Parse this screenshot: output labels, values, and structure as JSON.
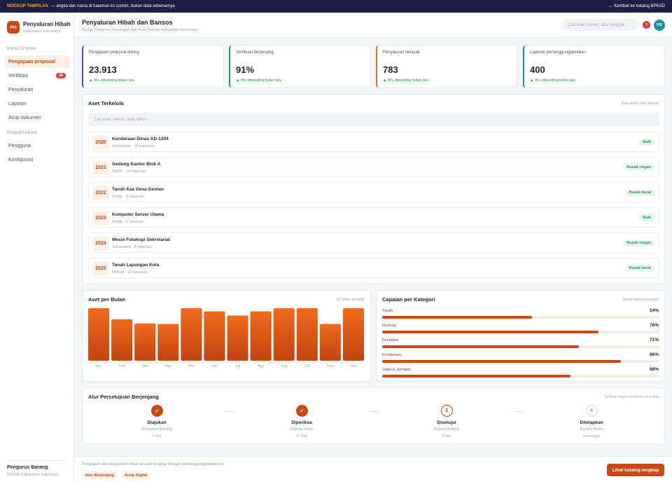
{
  "topbar": {
    "tag": "MOCKUP TAMPILAN",
    "notice": "— angka dan nama di halaman ini contoh, bukan data sebenarnya",
    "back_label": "← Kembali ke katalog BPKAD"
  },
  "brand": {
    "initials": "PH",
    "name": "Penyaluran Hibah",
    "sub": "Kabupaten Sukoharjo"
  },
  "sidebar": {
    "main_label": "MENU UTAMA",
    "items": [
      {
        "label": "Pengajuan proposal",
        "active": true
      },
      {
        "label": "Verifikasi",
        "badge": "39"
      },
      {
        "label": "Penyaluran"
      },
      {
        "label": "Laporan"
      },
      {
        "label": "Arsip dokumen"
      }
    ],
    "settings_label": "PENGATURAN",
    "settings_items": [
      {
        "label": "Pengguna"
      },
      {
        "label": "Konfigurasi"
      }
    ],
    "user": {
      "name": "Pengurus Barang",
      "org": "BPKAD Kabupaten Sukoharjo"
    }
  },
  "header": {
    "title": "Penyaluran Hibah dan Bansos",
    "subtitle": "Badan Pengelola Keuangan dan Aset Daerah Kabupaten Sukoharjo",
    "search_placeholder": "Cari aset, nomor, atau tanggal...",
    "notif_count": "7",
    "avatar": "PB"
  },
  "stats": [
    {
      "label": "Pengajuan proposal daring",
      "value": "23.913",
      "delta": "▲ 4% dibanding bulan lalu",
      "color": "#4a4fc9"
    },
    {
      "label": "Verifikasi berjenjang",
      "value": "91%",
      "delta": "▲ 8% dibanding bulan lalu",
      "color": "#1f9a5a"
    },
    {
      "label": "Penyaluran terlacak",
      "value": "783",
      "delta": "▲ 8% dibanding bulan lalu",
      "color": "#e07a1a"
    },
    {
      "label": "Laporan pertanggungjawaban",
      "value": "400",
      "delta": "▲ 4% dibanding bulan lalu",
      "color": "#1a8f9c"
    }
  ],
  "assets": {
    "title": "Aset Terkelola",
    "hint": "Pencarian teks penuh",
    "search_placeholder": "Cari aset, nomor, atau tahun...",
    "rows": [
      {
        "year": "2020",
        "name": "Kendaraan Dinas AD-1204",
        "meta": "Sekretariat · 16 halaman",
        "status": "Baik"
      },
      {
        "year": "2021",
        "name": "Gedung Kantor Blok A",
        "meta": "PUPR · 16 halaman",
        "status": "Rusak ringan"
      },
      {
        "year": "2022",
        "name": "Tanah Kas Desa Gentan",
        "meta": "Disdik · 3 halaman",
        "status": "Rusak berat"
      },
      {
        "year": "2023",
        "name": "Komputer Server Utama",
        "meta": "Disdik · 2 halaman",
        "status": "Baik"
      },
      {
        "year": "2024",
        "name": "Mesin Fotokopi Sekretariat",
        "meta": "Sekretariat · 8 halaman",
        "status": "Rusak ringan"
      },
      {
        "year": "2025",
        "name": "Tanah Lapangan Kota",
        "meta": "Dishub · 12 halaman",
        "status": "Rusak berat"
      }
    ]
  },
  "chart_data": {
    "type": "bar",
    "title": "Aset per Bulan",
    "hint": "12 bulan terakhir",
    "categories": [
      "Jan",
      "Feb",
      "Mar",
      "Apr",
      "Mei",
      "Jun",
      "Jul",
      "Ags",
      "Sep",
      "Okt",
      "Nov",
      "Des"
    ],
    "values": [
      100,
      79,
      71,
      70,
      100,
      94,
      86,
      94,
      100,
      100,
      70,
      100
    ],
    "ylim": [
      0,
      100
    ],
    "color": "#c84a12",
    "grid": false
  },
  "categories": {
    "title": "Capaian per Kategori",
    "hint": "Target tahun berjalan",
    "items": [
      {
        "label": "Tanah",
        "pct_label": "54%",
        "value": 54
      },
      {
        "label": "Gedung",
        "pct_label": "78%",
        "value": 78
      },
      {
        "label": "Peralatan",
        "pct_label": "71%",
        "value": 71
      },
      {
        "label": "Kendaraan",
        "pct_label": "86%",
        "value": 86
      },
      {
        "label": "Jalan & Jaringan",
        "pct_label": "68%",
        "value": 68
      }
    ]
  },
  "approval": {
    "title": "Alur Persetujuan Berjenjang",
    "hint": "Terlihat siapa menahan di mana",
    "steps": [
      {
        "mark": "✓",
        "name": "Diajukan",
        "role": "Pengurus Barang",
        "date": "1 Sep",
        "state": "done"
      },
      {
        "mark": "✓",
        "name": "Diperiksa",
        "role": "Kepala Seksi",
        "date": "17 Sep",
        "state": "done"
      },
      {
        "mark": "3",
        "name": "Disetujui",
        "role": "Kepala Bidang",
        "date": "5 Sep",
        "state": "current"
      },
      {
        "mark": "4",
        "name": "Ditetapkan",
        "role": "Kepala Dinas",
        "date": "menunggu",
        "state": "todo"
      }
    ]
  },
  "footer": {
    "text": "Pengajuan dan penyaluran hibah tercatat lengkap dengan pertanggungjawabannya.",
    "tags": [
      "Alur Berjenjang",
      "Arsip Digital"
    ],
    "cta": "Lihat katalog lengkap"
  }
}
